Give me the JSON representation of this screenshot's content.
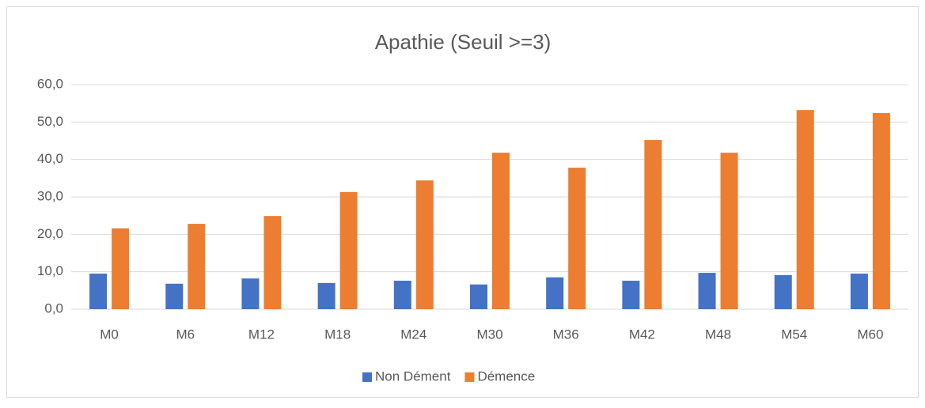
{
  "chart_data": {
    "type": "bar",
    "title": "Apathie (Seuil >=3)",
    "categories": [
      "M0",
      "M6",
      "M12",
      "M18",
      "M24",
      "M30",
      "M36",
      "M42",
      "M48",
      "M54",
      "M60"
    ],
    "series": [
      {
        "name": "Non Dément",
        "color": "#4472c4",
        "values": [
          9.5,
          6.8,
          8.2,
          7.0,
          7.6,
          6.6,
          8.5,
          7.6,
          9.7,
          9.1,
          9.5
        ]
      },
      {
        "name": "Démence",
        "color": "#ed7d31",
        "values": [
          21.6,
          22.8,
          24.9,
          31.3,
          34.4,
          41.8,
          37.8,
          45.2,
          41.8,
          53.2,
          52.4
        ]
      }
    ],
    "ylim": [
      0,
      60
    ],
    "yticks": [
      {
        "value": 0,
        "label": "0,0"
      },
      {
        "value": 10,
        "label": "10,0"
      },
      {
        "value": 20,
        "label": "20,0"
      },
      {
        "value": 30,
        "label": "30,0"
      },
      {
        "value": 40,
        "label": "40,0"
      },
      {
        "value": 50,
        "label": "50,0"
      },
      {
        "value": 60,
        "label": "60,0"
      }
    ],
    "grid": true,
    "legend": "bottom"
  }
}
